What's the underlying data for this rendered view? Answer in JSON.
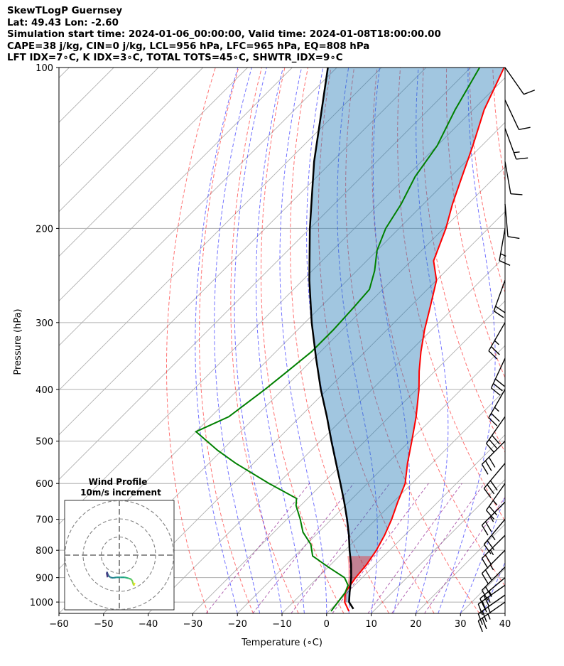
{
  "header": {
    "line1": "SkewTLogP Guernsey",
    "line2": "Lat: 49.43   Lon: -2.60",
    "line3": "Simulation start time: 2024-01-06_00:00:00, Valid time: 2024-01-08T18:00:00.00",
    "line4": "CAPE=38 j/kg, CIN=0 j/kg, LCL=956 hPa, LFC=965 hPa, EQ=808 hPa",
    "line5": "LFT IDX=7∘C, K IDX=3∘C, TOTAL TOTS=45∘C, SHWTR_IDX=9∘C"
  },
  "chart_data": {
    "type": "line",
    "title": "SkewTLogP Guernsey",
    "xlabel": "Temperature (∘C)",
    "ylabel": "Pressure (hPa)",
    "xlim": [
      -60,
      40
    ],
    "ylim": [
      1050,
      100
    ],
    "x_ticks": [
      "−60",
      "−50",
      "−40",
      "−30",
      "−20",
      "−10",
      "0",
      "10",
      "20",
      "30",
      "40"
    ],
    "y_ticks": [
      "100",
      "200",
      "300",
      "400",
      "500",
      "600",
      "700",
      "800",
      "900",
      "1000"
    ],
    "series": [
      {
        "name": "temperature",
        "color": "#ff0000",
        "p": [
          1040,
          1000,
          960,
          900,
          850,
          800,
          750,
          700,
          650,
          600,
          550,
          500,
          450,
          400,
          370,
          340,
          310,
          280,
          250,
          230,
          200,
          180,
          160,
          140,
          120,
          100
        ],
        "t": [
          4.5,
          1.5,
          -0.5,
          -1.5,
          -2.0,
          -3.0,
          -4.5,
          -6.5,
          -9.0,
          -11.5,
          -15.5,
          -19.5,
          -24.0,
          -29.5,
          -33.5,
          -37.5,
          -41.5,
          -45.5,
          -50.0,
          -55.0,
          -59.5,
          -63.5,
          -67.5,
          -72.0,
          -77.5,
          -82.5
        ]
      },
      {
        "name": "dewpoint",
        "color": "#008000",
        "p": [
          1040,
          1000,
          960,
          930,
          900,
          860,
          820,
          780,
          740,
          700,
          660,
          640,
          600,
          550,
          520,
          480,
          450,
          400,
          370,
          340,
          310,
          280,
          260,
          240,
          220,
          200,
          180,
          160,
          140,
          120,
          100
        ],
        "t": [
          0.5,
          0.0,
          -0.5,
          -1.5,
          -4.0,
          -10.0,
          -16.0,
          -19.0,
          -23.5,
          -27.0,
          -31.0,
          -32.5,
          -42.0,
          -54.0,
          -61.0,
          -70.0,
          -66.0,
          -64.0,
          -63.0,
          -62.0,
          -62.0,
          -62.5,
          -63.0,
          -66.0,
          -70.0,
          -73.0,
          -75.0,
          -78.0,
          -80.0,
          -84.0,
          -88.0
        ]
      },
      {
        "name": "parcel",
        "color": "#000000",
        "p": [
          1030,
          1000,
          960,
          900,
          850,
          800,
          750,
          700,
          650,
          600,
          550,
          500,
          450,
          400,
          350,
          300,
          250,
          200,
          150,
          100
        ],
        "t": [
          5.0,
          2.5,
          0.5,
          -2.5,
          -5.5,
          -9.0,
          -12.5,
          -16.5,
          -21.0,
          -26.0,
          -31.5,
          -37.5,
          -44.0,
          -51.5,
          -59.5,
          -68.5,
          -78.5,
          -90.0,
          -104.0,
          -122.0
        ]
      }
    ],
    "wind_barbs": {
      "p": [
        1000,
        970,
        930,
        900,
        860,
        800,
        750,
        700,
        650,
        600,
        550,
        500,
        450,
        400,
        350,
        300,
        250,
        200,
        180,
        150,
        130,
        115,
        100
      ],
      "speed_kt": [
        25,
        25,
        25,
        25,
        20,
        25,
        25,
        25,
        25,
        25,
        30,
        30,
        30,
        25,
        30,
        25,
        20,
        15,
        10,
        10,
        15,
        10,
        10
      ],
      "dir_deg": [
        235,
        235,
        235,
        230,
        225,
        225,
        225,
        220,
        225,
        215,
        220,
        225,
        215,
        210,
        205,
        210,
        200,
        190,
        175,
        170,
        160,
        155,
        145
      ]
    },
    "inset": {
      "title": "Wind Profile",
      "subtitle": "10m/s increment",
      "u": [
        8.5,
        8.2,
        8.0,
        7.6,
        7.2,
        6.5,
        5.0,
        3.0,
        0.5,
        -1.5,
        -3.5,
        -5.0,
        -6.0,
        -6.5,
        -6.8,
        -7.0,
        -6.5
      ],
      "v": [
        -3.5,
        -4.5,
        -5.0,
        -4.0,
        -2.5,
        -1.5,
        -1.0,
        -0.5,
        -0.5,
        -0.5,
        -0.8,
        -0.5,
        0.5,
        1.5,
        2.5,
        2.0,
        -0.5
      ]
    }
  }
}
